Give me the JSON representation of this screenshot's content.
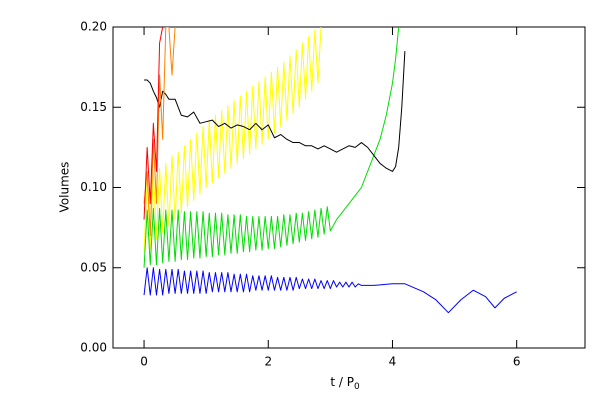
{
  "chart_data": {
    "type": "line",
    "xlabel": "t / P",
    "xlabel_subscript": "0",
    "ylabel": "Volumes",
    "xlim": [
      -0.5,
      7.1
    ],
    "ylim": [
      0,
      0.2
    ],
    "xticks": [
      0,
      2,
      4,
      6
    ],
    "yticks": [
      {
        "value": 0,
        "label": "0.00"
      },
      {
        "value": 0.05,
        "label": "0.05"
      },
      {
        "value": 0.1,
        "label": "0.10"
      },
      {
        "value": 0.15,
        "label": "0.15"
      },
      {
        "value": 0.2,
        "label": "0.20"
      }
    ],
    "series": [
      {
        "color": "#ffff00",
        "x": [
          0,
          0.05,
          0.1,
          0.15,
          0.2,
          0.25,
          0.3,
          0.35,
          0.4,
          0.45,
          0.5,
          0.55,
          0.6,
          0.65,
          0.7,
          0.75,
          0.8,
          0.85,
          0.9,
          0.95,
          1.0,
          1.05,
          1.1,
          1.15,
          1.2,
          1.25,
          1.3,
          1.35,
          1.4,
          1.45,
          1.5,
          1.55,
          1.6,
          1.65,
          1.7,
          1.75,
          1.8,
          1.85,
          1.9,
          1.95,
          2.0,
          2.05,
          2.1,
          2.15,
          2.2,
          2.25,
          2.3,
          2.35,
          2.4,
          2.45,
          2.5,
          2.55,
          2.6,
          2.65,
          2.7,
          2.75,
          2.8,
          2.85
        ],
        "values": [
          0.06,
          0.105,
          0.062,
          0.11,
          0.068,
          0.112,
          0.072,
          0.115,
          0.076,
          0.12,
          0.08,
          0.122,
          0.084,
          0.126,
          0.088,
          0.13,
          0.092,
          0.134,
          0.096,
          0.138,
          0.1,
          0.142,
          0.103,
          0.145,
          0.106,
          0.148,
          0.109,
          0.151,
          0.112,
          0.154,
          0.115,
          0.157,
          0.118,
          0.16,
          0.121,
          0.163,
          0.124,
          0.166,
          0.127,
          0.169,
          0.13,
          0.172,
          0.134,
          0.175,
          0.138,
          0.178,
          0.142,
          0.182,
          0.146,
          0.186,
          0.15,
          0.19,
          0.155,
          0.194,
          0.16,
          0.198,
          0.165,
          0.2
        ]
      },
      {
        "color": "#00dd00",
        "x": [
          0,
          0.05,
          0.1,
          0.15,
          0.2,
          0.25,
          0.3,
          0.35,
          0.4,
          0.45,
          0.5,
          0.55,
          0.6,
          0.65,
          0.7,
          0.75,
          0.8,
          0.85,
          0.9,
          0.95,
          1.0,
          1.05,
          1.1,
          1.15,
          1.2,
          1.25,
          1.3,
          1.35,
          1.4,
          1.45,
          1.5,
          1.55,
          1.6,
          1.65,
          1.7,
          1.75,
          1.8,
          1.85,
          1.9,
          1.95,
          2.0,
          2.05,
          2.1,
          2.15,
          2.2,
          2.25,
          2.3,
          2.35,
          2.4,
          2.45,
          2.5,
          2.55,
          2.6,
          2.65,
          2.7,
          2.75,
          2.8,
          2.85,
          2.9,
          2.95,
          3.0,
          3.1,
          3.2,
          3.3,
          3.4,
          3.5,
          3.6,
          3.7,
          3.8,
          3.9,
          4.0,
          4.05,
          4.1
        ],
        "values": [
          0.05,
          0.086,
          0.052,
          0.087,
          0.052,
          0.087,
          0.053,
          0.086,
          0.054,
          0.086,
          0.054,
          0.086,
          0.055,
          0.085,
          0.055,
          0.085,
          0.056,
          0.085,
          0.056,
          0.085,
          0.057,
          0.084,
          0.057,
          0.084,
          0.058,
          0.084,
          0.058,
          0.083,
          0.059,
          0.083,
          0.059,
          0.083,
          0.06,
          0.082,
          0.06,
          0.082,
          0.061,
          0.082,
          0.061,
          0.082,
          0.062,
          0.082,
          0.062,
          0.082,
          0.063,
          0.083,
          0.064,
          0.083,
          0.065,
          0.084,
          0.066,
          0.084,
          0.067,
          0.085,
          0.068,
          0.086,
          0.069,
          0.087,
          0.071,
          0.088,
          0.073,
          0.08,
          0.085,
          0.09,
          0.095,
          0.1,
          0.11,
          0.12,
          0.13,
          0.145,
          0.165,
          0.18,
          0.2
        ]
      },
      {
        "color": "#0000ff",
        "x": [
          0,
          0.05,
          0.1,
          0.15,
          0.2,
          0.25,
          0.3,
          0.35,
          0.4,
          0.45,
          0.5,
          0.55,
          0.6,
          0.65,
          0.7,
          0.75,
          0.8,
          0.85,
          0.9,
          0.95,
          1.0,
          1.05,
          1.1,
          1.15,
          1.2,
          1.25,
          1.3,
          1.35,
          1.4,
          1.45,
          1.5,
          1.55,
          1.6,
          1.65,
          1.7,
          1.75,
          1.8,
          1.85,
          1.9,
          1.95,
          2.0,
          2.05,
          2.1,
          2.15,
          2.2,
          2.25,
          2.3,
          2.35,
          2.4,
          2.45,
          2.5,
          2.55,
          2.6,
          2.65,
          2.7,
          2.75,
          2.8,
          2.85,
          2.9,
          2.95,
          3.0,
          3.05,
          3.1,
          3.15,
          3.2,
          3.25,
          3.3,
          3.35,
          3.4,
          3.45,
          3.5,
          3.7,
          4.0,
          4.2,
          4.5,
          4.7,
          4.9,
          5.1,
          5.3,
          5.5,
          5.65,
          5.8,
          6.0
        ],
        "values": [
          0.033,
          0.05,
          0.033,
          0.05,
          0.033,
          0.049,
          0.033,
          0.049,
          0.034,
          0.049,
          0.034,
          0.049,
          0.034,
          0.048,
          0.034,
          0.048,
          0.034,
          0.048,
          0.034,
          0.048,
          0.034,
          0.047,
          0.035,
          0.047,
          0.035,
          0.047,
          0.035,
          0.047,
          0.035,
          0.046,
          0.035,
          0.046,
          0.035,
          0.046,
          0.035,
          0.045,
          0.036,
          0.045,
          0.036,
          0.045,
          0.036,
          0.045,
          0.036,
          0.044,
          0.036,
          0.044,
          0.036,
          0.044,
          0.036,
          0.044,
          0.037,
          0.043,
          0.037,
          0.043,
          0.037,
          0.043,
          0.037,
          0.042,
          0.037,
          0.042,
          0.037,
          0.042,
          0.038,
          0.041,
          0.038,
          0.041,
          0.038,
          0.041,
          0.038,
          0.04,
          0.039,
          0.039,
          0.04,
          0.04,
          0.035,
          0.03,
          0.022,
          0.03,
          0.036,
          0.032,
          0.025,
          0.031,
          0.035
        ]
      },
      {
        "color": "#000000",
        "x": [
          0,
          0.05,
          0.1,
          0.15,
          0.2,
          0.25,
          0.3,
          0.35,
          0.4,
          0.5,
          0.6,
          0.7,
          0.8,
          0.9,
          1.0,
          1.1,
          1.2,
          1.3,
          1.4,
          1.5,
          1.6,
          1.7,
          1.8,
          1.9,
          2.0,
          2.1,
          2.2,
          2.3,
          2.4,
          2.5,
          2.6,
          2.7,
          2.8,
          2.9,
          3.0,
          3.1,
          3.2,
          3.3,
          3.4,
          3.5,
          3.6,
          3.7,
          3.8,
          3.9,
          4.0,
          4.05,
          4.1,
          4.15,
          4.2
        ],
        "values": [
          0.167,
          0.167,
          0.165,
          0.16,
          0.156,
          0.15,
          0.16,
          0.158,
          0.155,
          0.155,
          0.145,
          0.144,
          0.147,
          0.14,
          0.141,
          0.142,
          0.138,
          0.14,
          0.137,
          0.139,
          0.138,
          0.136,
          0.14,
          0.136,
          0.139,
          0.131,
          0.133,
          0.13,
          0.128,
          0.128,
          0.126,
          0.126,
          0.124,
          0.126,
          0.124,
          0.122,
          0.124,
          0.126,
          0.125,
          0.128,
          0.125,
          0.12,
          0.115,
          0.112,
          0.11,
          0.113,
          0.125,
          0.15,
          0.185
        ]
      },
      {
        "color": "#ff8000",
        "x": [
          0,
          0.05,
          0.1,
          0.15,
          0.2,
          0.25,
          0.3,
          0.35,
          0.4,
          0.45,
          0.5
        ],
        "values": [
          0.09,
          0.11,
          0.07,
          0.13,
          0.09,
          0.17,
          0.13,
          0.2,
          0.2,
          0.17,
          0.2
        ]
      },
      {
        "color": "#ff0000",
        "x": [
          0,
          0.05,
          0.1,
          0.15,
          0.2,
          0.25,
          0.3
        ],
        "values": [
          0.08,
          0.125,
          0.09,
          0.14,
          0.11,
          0.19,
          0.2
        ]
      }
    ]
  }
}
